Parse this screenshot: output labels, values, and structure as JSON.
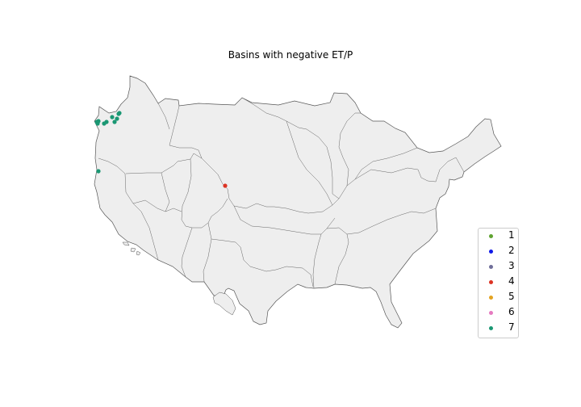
{
  "title": "Basins with negative ET/P",
  "map": {
    "land_color": "#eeeeee",
    "border_color": "#555555",
    "legend_position": "lower-right"
  },
  "legend": [
    {
      "label": "1",
      "color": "#5fa331"
    },
    {
      "label": "2",
      "color": "#1019e8"
    },
    {
      "label": "3",
      "color": "#6f6e99"
    },
    {
      "label": "4",
      "color": "#dc3323"
    },
    {
      "label": "5",
      "color": "#e3a321"
    },
    {
      "label": "6",
      "color": "#e57ac0"
    },
    {
      "label": "7",
      "color": "#1a9773"
    }
  ],
  "points": [
    {
      "group": "7",
      "count_visible": 10,
      "region": "Pacific Northwest"
    },
    {
      "group": "7",
      "count_visible": 1,
      "region": "Northern California coast"
    },
    {
      "group": "4",
      "count_visible": 1,
      "region": "Wyoming / Colorado border"
    }
  ]
}
